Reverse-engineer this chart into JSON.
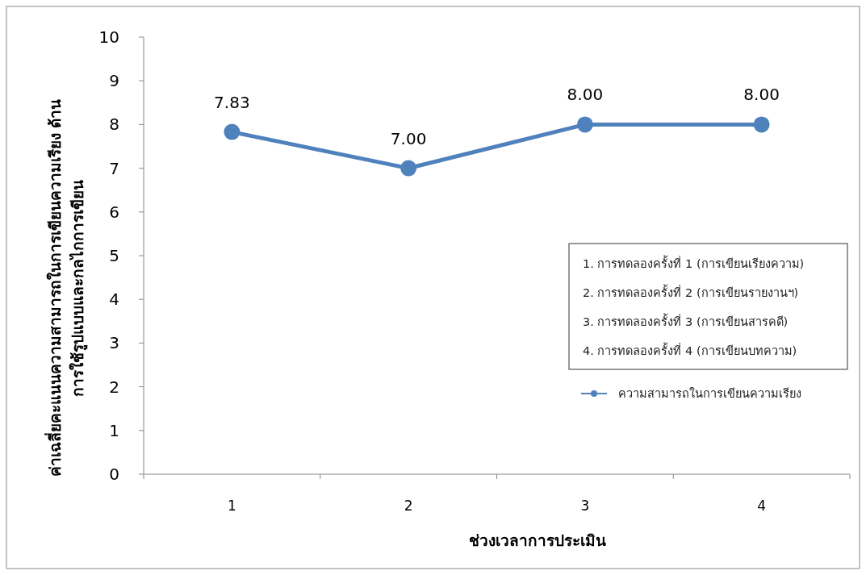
{
  "chart_data": {
    "type": "line",
    "xlabel": "ช่วงเวลาการประเมิน",
    "ylabel": "ค่าเฉลี่ยคะแนนความสามารถในการเขียนความเรียง ด้าน\nการใช้รูปแบบและกลไกการเขียน",
    "categories": [
      "1",
      "2",
      "3",
      "4"
    ],
    "series": [
      {
        "name": "ความสามารถในการเขียนความเรียง",
        "color": "#4f81bd",
        "values": [
          7.83,
          7.0,
          8.0,
          8.0
        ]
      }
    ],
    "ylim": [
      0,
      10
    ],
    "yticks": [
      0,
      1,
      2,
      3,
      4,
      5,
      6,
      7,
      8,
      9,
      10
    ],
    "value_labels": [
      "7.83",
      "7.00",
      "8.00",
      "8.00"
    ],
    "marker": "circle",
    "line_style": "solid",
    "legend": "right",
    "annotations": [
      "1. การทดลองครั้งที่ 1 (การเขียนเรียงความ)",
      "2. การทดลองครั้งที่ 2 (การเขียนรายงานฯ)",
      "3. การทดลองครั้งที่ 3 (การเขียนสารคดี)",
      "4. การทดลองครั้งที่ 4 (การเขียนบทความ)"
    ]
  }
}
